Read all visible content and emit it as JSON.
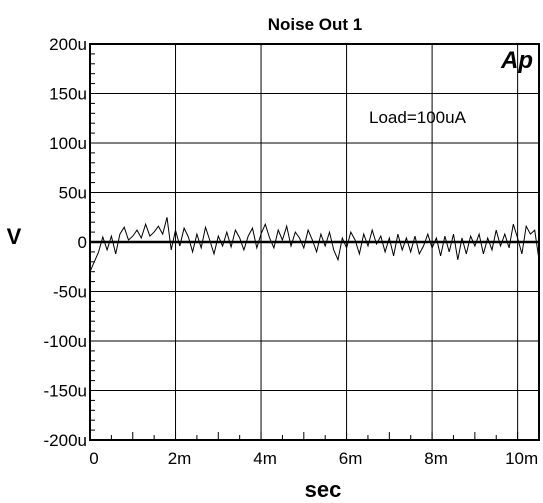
{
  "chart_data": {
    "type": "line",
    "title": "Noise Out 1",
    "xlabel": "sec",
    "ylabel": "V",
    "annotation": "Load=100uA",
    "logo": "Ap",
    "xlim": [
      0,
      0.0105
    ],
    "ylim": [
      -0.0002,
      0.0002
    ],
    "grid": true,
    "x_ticks": [
      {
        "value": 0,
        "label": "0"
      },
      {
        "value": 0.002,
        "label": "2m"
      },
      {
        "value": 0.004,
        "label": "4m"
      },
      {
        "value": 0.006,
        "label": "6m"
      },
      {
        "value": 0.008,
        "label": "8m"
      },
      {
        "value": 0.01,
        "label": "10m"
      }
    ],
    "y_ticks": [
      {
        "value": 0.0002,
        "label": "200u"
      },
      {
        "value": 0.00015,
        "label": "150u"
      },
      {
        "value": 0.0001,
        "label": "100u"
      },
      {
        "value": 5e-05,
        "label": "50u"
      },
      {
        "value": 0,
        "label": "0"
      },
      {
        "value": -5e-05,
        "label": "-50u"
      },
      {
        "value": -0.0001,
        "label": "-100u"
      },
      {
        "value": -0.00015,
        "label": "-150u"
      },
      {
        "value": -0.0002,
        "label": "-200u"
      }
    ],
    "series": [
      {
        "x": [
          0,
          0.0001,
          0.0002,
          0.0003,
          0.0004,
          0.0005,
          0.0006,
          0.0007,
          0.0008,
          0.0009,
          0.001,
          0.0011,
          0.0012,
          0.0013,
          0.0014,
          0.0015,
          0.0016,
          0.0017,
          0.0018,
          0.0019,
          0.002,
          0.0021,
          0.0022,
          0.0023,
          0.0024,
          0.0025,
          0.0026,
          0.0027,
          0.0028,
          0.0029,
          0.003,
          0.0031,
          0.0032,
          0.0033,
          0.0034,
          0.0035,
          0.0036,
          0.0037,
          0.0038,
          0.0039,
          0.004,
          0.0041,
          0.0042,
          0.0043,
          0.0044,
          0.0045,
          0.0046,
          0.0047,
          0.0048,
          0.0049,
          0.005,
          0.0051,
          0.0052,
          0.0053,
          0.0054,
          0.0055,
          0.0056,
          0.0057,
          0.0058,
          0.0059,
          0.006,
          0.0061,
          0.0062,
          0.0063,
          0.0064,
          0.0065,
          0.0066,
          0.0067,
          0.0068,
          0.0069,
          0.007,
          0.0071,
          0.0072,
          0.0073,
          0.0074,
          0.0075,
          0.0076,
          0.0077,
          0.0078,
          0.0079,
          0.008,
          0.0081,
          0.0082,
          0.0083,
          0.0084,
          0.0085,
          0.0086,
          0.0087,
          0.0088,
          0.0089,
          0.009,
          0.0091,
          0.0092,
          0.0093,
          0.0094,
          0.0095,
          0.0096,
          0.0097,
          0.0098,
          0.0099,
          0.01,
          0.0101,
          0.0102,
          0.0103,
          0.0104,
          0.0105
        ],
        "y": [
          -3e-05,
          -2e-05,
          -1e-05,
          5e-06,
          -8e-06,
          6e-06,
          -1.2e-05,
          8e-06,
          1.5e-05,
          2e-06,
          6e-06,
          1.2e-05,
          4e-06,
          1.8e-05,
          6e-06,
          1e-05,
          1.6e-05,
          8e-06,
          2.5e-05,
          -8e-06,
          1.2e-05,
          -4e-06,
          1.4e-05,
          5e-06,
          -1e-05,
          8e-06,
          -6e-06,
          1.5e-05,
          2e-06,
          -1.2e-05,
          6e-06,
          -4e-06,
          1e-05,
          -5e-06,
          1.2e-05,
          4e-06,
          -8e-06,
          6e-06,
          1.4e-05,
          -6e-06,
          8e-06,
          1.8e-05,
          4e-06,
          -6e-06,
          1.2e-05,
          2e-06,
          1.6e-05,
          -4e-06,
          1e-05,
          4e-06,
          -6e-06,
          1.2e-05,
          2e-06,
          -1e-05,
          8e-06,
          -4e-06,
          1e-05,
          -8e-06,
          -1.8e-05,
          4e-06,
          -6e-06,
          1e-05,
          2e-06,
          -1.2e-05,
          8e-06,
          -4e-06,
          1.2e-05,
          -2e-06,
          6e-06,
          -1e-05,
          4e-06,
          -1.4e-05,
          8e-06,
          -8e-06,
          4e-06,
          -1e-05,
          6e-06,
          -1.2e-05,
          -4e-06,
          8e-06,
          -6e-06,
          4e-06,
          -1.4e-05,
          6e-06,
          -1e-05,
          8e-06,
          -1.8e-05,
          4e-06,
          -1.2e-05,
          6e-06,
          -4e-06,
          8e-06,
          -1.2e-05,
          4e-06,
          -8e-06,
          1.2e-05,
          -4e-06,
          8e-06,
          -6e-06,
          1.8e-05,
          4e-06,
          -1.2e-05,
          1.6e-05,
          8e-06,
          1.2e-05,
          -1.8e-05
        ]
      }
    ]
  }
}
